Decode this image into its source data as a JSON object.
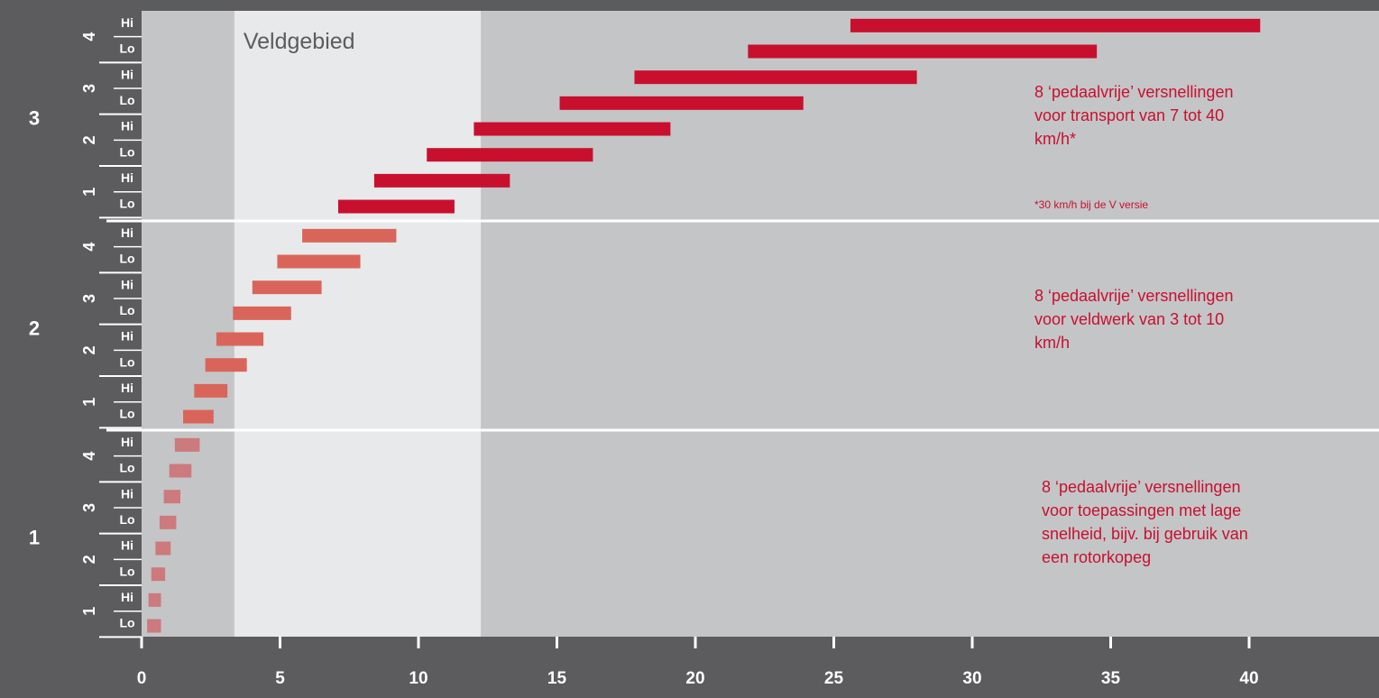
{
  "chart_data": {
    "type": "bar",
    "orientation": "horizontal-range",
    "xlim": [
      0,
      45
    ],
    "x_ticks": [
      0,
      5,
      10,
      15,
      20,
      25,
      30,
      35,
      40
    ],
    "highlight_region": {
      "label": "Veldgebied",
      "from": 3.35,
      "to": 12.25
    },
    "range_labels": [
      "Hi",
      "Lo"
    ],
    "colors": {
      "range_3": "#c8102e",
      "range_2": "#d9655a",
      "range_1": "#cc7a7d",
      "highlight": "#e8e9eb",
      "plot_bg": "#c4c5c7",
      "frame": "#5c5c5e",
      "note_text": "#c8102e"
    },
    "ranges": [
      {
        "label": "3",
        "gears": [
          {
            "gear": "4",
            "hi": [
              25.6,
              40.4
            ],
            "lo": [
              21.9,
              34.5
            ]
          },
          {
            "gear": "3",
            "hi": [
              17.8,
              28.0
            ],
            "lo": [
              15.1,
              23.9
            ]
          },
          {
            "gear": "2",
            "hi": [
              12.0,
              19.1
            ],
            "lo": [
              10.3,
              16.3
            ]
          },
          {
            "gear": "1",
            "hi": [
              8.4,
              13.3
            ],
            "lo": [
              7.1,
              11.3
            ]
          }
        ],
        "note": {
          "lines": [
            "8 ‘pedaalvrije’ versnellingen",
            "voor transport van 7 tot 40",
            "km/h*"
          ],
          "footnote": "*30 km/h bij de V versie"
        }
      },
      {
        "label": "2",
        "gears": [
          {
            "gear": "4",
            "hi": [
              5.8,
              9.2
            ],
            "lo": [
              4.9,
              7.9
            ]
          },
          {
            "gear": "3",
            "hi": [
              4.0,
              6.5
            ],
            "lo": [
              3.3,
              5.4
            ]
          },
          {
            "gear": "2",
            "hi": [
              2.7,
              4.4
            ],
            "lo": [
              2.3,
              3.8
            ]
          },
          {
            "gear": "1",
            "hi": [
              1.9,
              3.1
            ],
            "lo": [
              1.5,
              2.6
            ]
          }
        ],
        "note": {
          "lines": [
            "8 ‘pedaalvrije’ versnellingen",
            "voor veldwerk van 3 tot 10",
            "km/h"
          ]
        }
      },
      {
        "label": "1",
        "gears": [
          {
            "gear": "4",
            "hi": [
              1.2,
              2.1
            ],
            "lo": [
              1.0,
              1.8
            ]
          },
          {
            "gear": "3",
            "hi": [
              0.8,
              1.4
            ],
            "lo": [
              0.65,
              1.25
            ]
          },
          {
            "gear": "2",
            "hi": [
              0.5,
              1.05
            ],
            "lo": [
              0.35,
              0.85
            ]
          },
          {
            "gear": "1",
            "hi": [
              0.25,
              0.7
            ],
            "lo": [
              0.2,
              0.7
            ]
          }
        ],
        "note": {
          "lines": [
            "8 ‘pedaalvrije’ versnellingen",
            "voor toepassingen met lage",
            "snelheid, bijv. bij gebruik van",
            "een rotorkopeg"
          ]
        }
      }
    ]
  }
}
